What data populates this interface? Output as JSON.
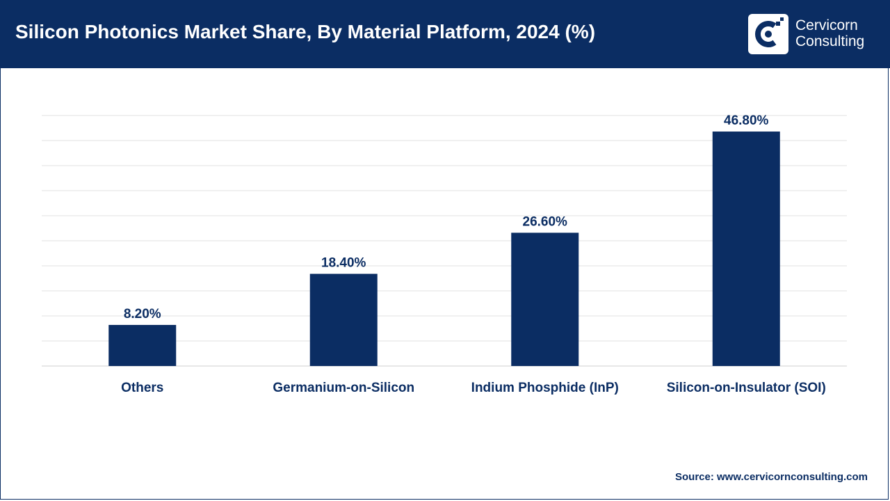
{
  "header": {
    "title": "Silicon Photonics Market Share, By Material Platform, 2024 (%)",
    "logo_line1": "Cervicorn",
    "logo_line2": "Consulting"
  },
  "source": "Source: www.cervicornconsulting.com",
  "colors": {
    "header_bg": "#0b2d63",
    "bar": "#0b2d63",
    "grid": "#e0e0e0"
  },
  "chart_data": {
    "type": "bar",
    "title": "Silicon Photonics Market Share, By Material Platform, 2024 (%)",
    "categories": [
      "Others",
      "Germanium-on-Silicon",
      "Indium Phosphide (InP)",
      "Silicon-on-Insulator (SOI)"
    ],
    "values": [
      8.2,
      18.4,
      26.6,
      46.8
    ],
    "value_labels": [
      "8.20%",
      "18.40%",
      "26.60%",
      "46.80%"
    ],
    "ylim": [
      0,
      50
    ],
    "grid": true,
    "legend": "none"
  }
}
